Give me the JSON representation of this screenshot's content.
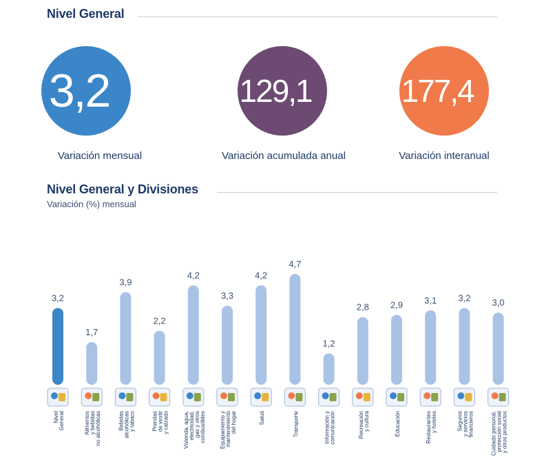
{
  "header": {
    "nivel_general_title": "Nivel General",
    "divisiones_title": "Nivel General y Divisiones",
    "divisiones_subtitle": "Variación (%) mensual"
  },
  "kpis": [
    {
      "value": "3,2",
      "unit": "%",
      "label": "Variación mensual",
      "color": "#3a86c8"
    },
    {
      "value": "129,1",
      "unit": "%",
      "label": "Variación acumulada anual",
      "color": "#6c4a72"
    },
    {
      "value": "177,4",
      "unit": "%",
      "label": "Variación interanual",
      "color": "#f07a4a"
    }
  ],
  "colors": {
    "highlight_bar": "#3a86c8",
    "bar": "#a9c3e6",
    "label": "#1f3a68"
  },
  "chart_data": {
    "type": "bar",
    "title": "Nivel General y Divisiones",
    "subtitle": "Variación (%) mensual",
    "categories": [
      [
        "Nivel",
        "General"
      ],
      [
        "Alimentos",
        "y bebidas",
        "no alcohólicas"
      ],
      [
        "Bebidas",
        "alcohólicas",
        "y tabaco"
      ],
      [
        "Prendas",
        "de vestir",
        "y calzado"
      ],
      [
        "Vivienda, agua,",
        "electricidad,",
        "gas y otros",
        "combustibles"
      ],
      [
        "Equipamiento y",
        "mantenimiento",
        "del hogar"
      ],
      [
        "Salud"
      ],
      [
        "Transporte"
      ],
      [
        "Información y",
        "comunicación"
      ],
      [
        "Recreación",
        "y cultura"
      ],
      [
        "Educación"
      ],
      [
        "Restaurantes",
        "y hoteles"
      ],
      [
        "Seguros",
        "y servicios",
        "financieros"
      ],
      [
        "Cuidado personal,",
        "protección social",
        "y otros productos"
      ]
    ],
    "icons": [
      "chart-icon",
      "food-icon",
      "drinks-icon",
      "clothing-icon",
      "housing-icon",
      "appliance-icon",
      "doctor-icon",
      "car-icon",
      "computer-icon",
      "tickets-icon",
      "school-icon",
      "cutlery-icon",
      "bank-icon",
      "cosmetics-icon"
    ],
    "values": [
      3.2,
      1.7,
      3.9,
      2.2,
      4.2,
      3.3,
      4.2,
      4.7,
      1.2,
      2.8,
      2.9,
      3.1,
      3.2,
      3.0
    ],
    "value_labels": [
      "3,2",
      "1,7",
      "3,9",
      "2,2",
      "4,2",
      "3,3",
      "4,2",
      "4,7",
      "1,2",
      "2,8",
      "2,9",
      "3,1",
      "3,2",
      "3,0"
    ],
    "highlight_index": 0,
    "ylim": [
      0,
      4.7
    ]
  }
}
